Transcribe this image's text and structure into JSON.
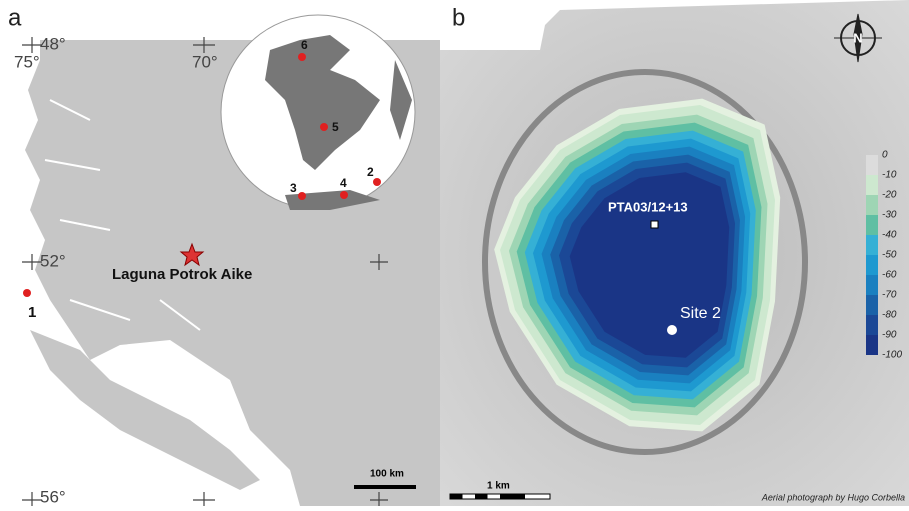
{
  "panel_a": {
    "label": "a",
    "coordinates": [
      "48°",
      "75°",
      "70°",
      "52°",
      "56°"
    ],
    "sites": [
      "1",
      "2",
      "3",
      "4",
      "5",
      "6"
    ],
    "lake_label": "Laguna Potrok Aike",
    "scale_bar": "100 km"
  },
  "panel_b": {
    "label": "b",
    "compass": "N",
    "depth_legend": [
      "0",
      "-10",
      "-20",
      "-30",
      "-40",
      "-50",
      "-60",
      "-70",
      "-80",
      "-90",
      "-100"
    ],
    "core_label": "PTA03/12+13",
    "site_label": "Site 2",
    "scale_bar": "1 km",
    "credit": "Aerial photograph by Hugo Corbella"
  }
}
